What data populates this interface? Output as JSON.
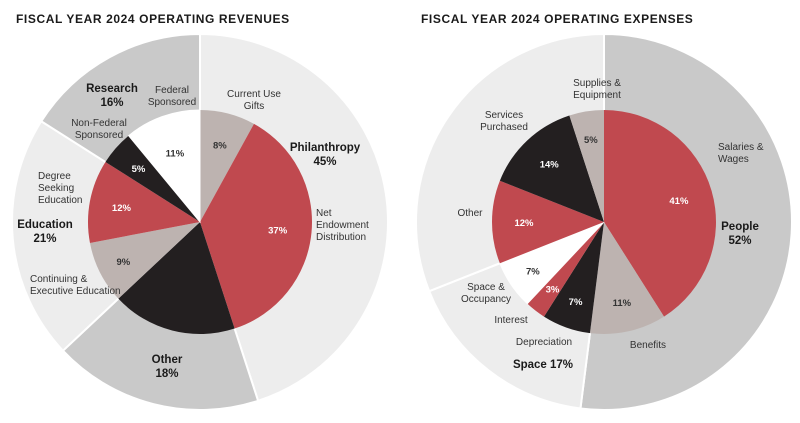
{
  "colors": {
    "red": "#c0494f",
    "black": "#231f20",
    "taupe": "#bdb3b0",
    "white": "#ffffff",
    "light_gray": "#ededed",
    "mid_gray": "#c9c9c9",
    "text": "#1a1a1a",
    "label_text": "#333333"
  },
  "chart_data": [
    {
      "type": "pie",
      "variant": "nested-donut",
      "title": "FISCAL YEAR 2024 OPERATING REVENUES",
      "outer_ring": {
        "slices": [
          {
            "id": "philanthropy",
            "label": "Philanthropy",
            "pct_label": "45%",
            "value": 45,
            "color": "light_gray"
          },
          {
            "id": "other",
            "label": "Other",
            "pct_label": "18%",
            "value": 18,
            "color": "mid_gray"
          },
          {
            "id": "education",
            "label": "Education",
            "pct_label": "21%",
            "value": 21,
            "color": "light_gray"
          },
          {
            "id": "research",
            "label": "Research",
            "pct_label": "16%",
            "value": 16,
            "color": "mid_gray"
          }
        ]
      },
      "inner_pie": {
        "slices": [
          {
            "id": "current-use-gifts",
            "label": "Current Use Gifts",
            "pct_label": "8%",
            "value": 8,
            "color": "taupe"
          },
          {
            "id": "net-endowment-distribution",
            "label": "Net Endowment Distribution",
            "pct_label": "37%",
            "value": 37,
            "color": "red"
          },
          {
            "id": "other",
            "label": "",
            "pct_label": "",
            "value": 18,
            "color": "black"
          },
          {
            "id": "continuing-executive-education",
            "label": "Continuing & Executive Education",
            "pct_label": "9%",
            "value": 9,
            "color": "taupe"
          },
          {
            "id": "degree-seeking-education",
            "label": "Degree Seeking Education",
            "pct_label": "12%",
            "value": 12,
            "color": "red"
          },
          {
            "id": "non-federal-sponsored",
            "label": "Non-Federal Sponsored",
            "pct_label": "5%",
            "value": 5,
            "color": "black"
          },
          {
            "id": "federal-sponsored",
            "label": "Federal Sponsored",
            "pct_label": "11%",
            "value": 11,
            "color": "white"
          }
        ]
      }
    },
    {
      "type": "pie",
      "variant": "nested-donut",
      "title": "FISCAL YEAR 2024 OPERATING EXPENSES",
      "outer_ring": {
        "slices": [
          {
            "id": "people",
            "label": "People",
            "pct_label": "52%",
            "value": 52,
            "color": "mid_gray"
          },
          {
            "id": "space",
            "label": "Space",
            "pct_label": "17%",
            "value": 17,
            "color": "light_gray"
          },
          {
            "id": "other-services",
            "label": "",
            "pct_label": "",
            "value": 31,
            "color": "light_gray"
          }
        ]
      },
      "inner_pie": {
        "slices": [
          {
            "id": "salaries-wages",
            "label": "Salaries & Wages",
            "pct_label": "41%",
            "value": 41,
            "color": "red"
          },
          {
            "id": "benefits",
            "label": "Benefits",
            "pct_label": "11%",
            "value": 11,
            "color": "taupe"
          },
          {
            "id": "depreciation",
            "label": "Depreciation",
            "pct_label": "7%",
            "value": 7,
            "color": "black"
          },
          {
            "id": "interest",
            "label": "Interest",
            "pct_label": "3%",
            "value": 3,
            "color": "red"
          },
          {
            "id": "space-occupancy",
            "label": "Space & Occupancy",
            "pct_label": "7%",
            "value": 7,
            "color": "white"
          },
          {
            "id": "other",
            "label": "Other",
            "pct_label": "12%",
            "value": 12,
            "color": "red"
          },
          {
            "id": "services-purchased",
            "label": "Services Purchased",
            "pct_label": "14%",
            "value": 14,
            "color": "black"
          },
          {
            "id": "supplies-equipment",
            "label": "Supplies & Equipment",
            "pct_label": "5%",
            "value": 5,
            "color": "taupe"
          }
        ]
      }
    }
  ]
}
